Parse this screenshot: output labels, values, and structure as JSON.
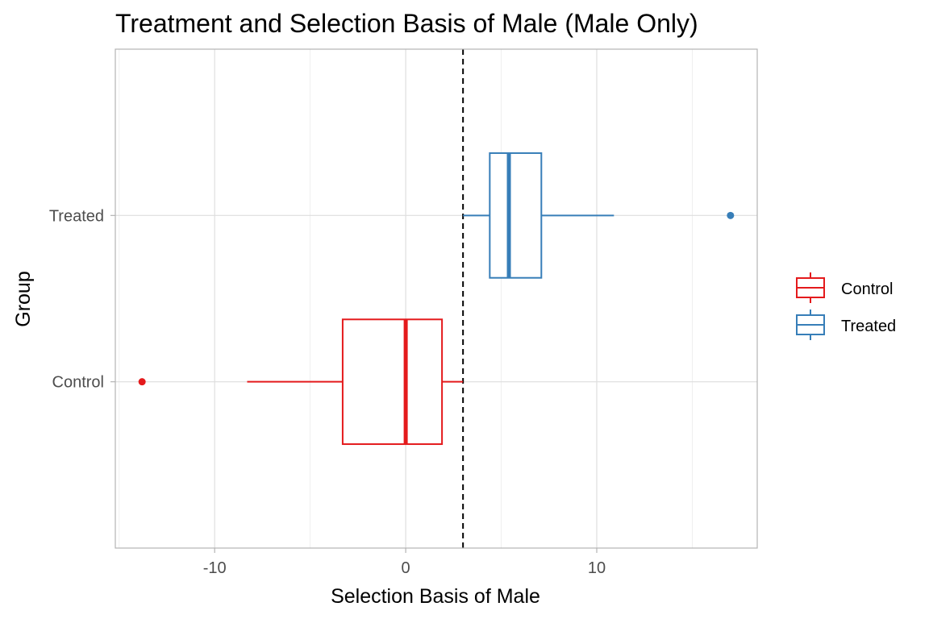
{
  "chart_data": {
    "type": "boxplot",
    "orientation": "horizontal",
    "title": "Treatment and Selection Basis of Male (Male Only)",
    "xlabel": "Selection Basis of Male",
    "ylabel": "Group",
    "xlim": [
      -15.2,
      18.4
    ],
    "x_ticks": [
      -10,
      0,
      10
    ],
    "x_tick_labels": [
      "-10",
      "0",
      "10"
    ],
    "x_minor_ticks": [
      -15,
      -5,
      5,
      15
    ],
    "grid": true,
    "legend_position": "right",
    "reference_line": {
      "x": 3,
      "style": "dashed",
      "color": "#000000"
    },
    "categories": [
      "Control",
      "Treated"
    ],
    "series": [
      {
        "name": "Control",
        "color": "#e41a1c",
        "whisker_low": -8.3,
        "q1": -3.3,
        "median": 0.0,
        "q3": 1.9,
        "whisker_high": 3.0,
        "outliers": [
          -13.8
        ]
      },
      {
        "name": "Treated",
        "color": "#377eb8",
        "whisker_low": 3.0,
        "q1": 4.4,
        "median": 5.4,
        "q3": 7.1,
        "whisker_high": 10.9,
        "outliers": [
          17.0
        ]
      }
    ]
  }
}
